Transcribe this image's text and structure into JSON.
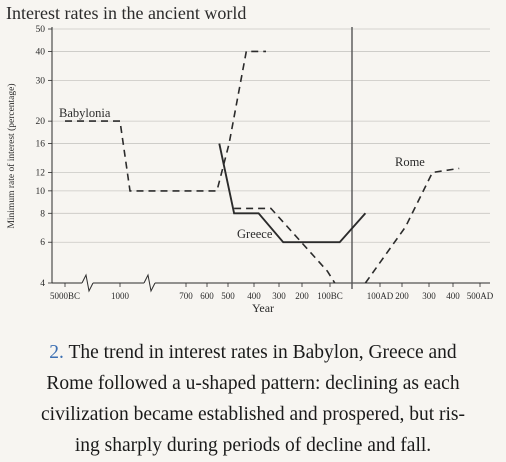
{
  "chart_data": {
    "type": "line",
    "title": "Interest rates in the ancient world",
    "xlabel": "Year",
    "ylabel": "Minimum rate of interest (percentage)",
    "y_scale": "log",
    "ylim": [
      4,
      50
    ],
    "y_ticks": [
      4,
      6,
      8,
      10,
      12,
      16,
      20,
      30,
      40,
      50
    ],
    "x_ticks": [
      "5000BC",
      "1000",
      "700",
      "600",
      "500",
      "400",
      "300",
      "200",
      "100BC",
      "100AD",
      "200",
      "300",
      "400",
      "500AD"
    ],
    "x_axis_breaks": [
      "between 5000BC and 1000",
      "between 1000 and 700"
    ],
    "divider_at": "0 (BC/AD boundary)",
    "series": [
      {
        "name": "Babylonia",
        "style": "dashed",
        "points": [
          {
            "x": "5000BC",
            "y": 20
          },
          {
            "x": "1000BC",
            "y": 20
          },
          {
            "x": "950BC",
            "y": 10
          },
          {
            "x": "550BC",
            "y": 10
          },
          {
            "x": "500BC",
            "y": 16
          },
          {
            "x": "430BC",
            "y": 40
          },
          {
            "x": "350BC",
            "y": 40
          }
        ]
      },
      {
        "name": "Greece",
        "style": "solid",
        "points": [
          {
            "x": "540BC",
            "y": 16
          },
          {
            "x": "480BC",
            "y": 8
          },
          {
            "x": "380BC",
            "y": 8
          },
          {
            "x": "280BC",
            "y": 6
          },
          {
            "x": "50BC",
            "y": 6
          },
          {
            "x": "50AD",
            "y": 8
          }
        ]
      },
      {
        "name": "Greece (dashed continuation)",
        "style": "dashed",
        "points": [
          {
            "x": "480BC",
            "y": 8.4
          },
          {
            "x": "330BC",
            "y": 8.4
          },
          {
            "x": "100BC",
            "y": 4.5
          },
          {
            "x": "70BC",
            "y": 4
          }
        ]
      },
      {
        "name": "Rome",
        "style": "dashed",
        "points": [
          {
            "x": "50AD",
            "y": 4
          },
          {
            "x": "200AD",
            "y": 7
          },
          {
            "x": "300AD",
            "y": 12
          },
          {
            "x": "400AD",
            "y": 12.5
          }
        ]
      }
    ],
    "annotations": [
      "Babylonia",
      "Greece",
      "Rome"
    ]
  },
  "caption": {
    "number": "2.",
    "lines": [
      "The trend in interest rates in Babylon, Greece and",
      "Rome followed a u-shaped pattern: declining as each",
      "civilization became established and prospered, but ris-",
      "ing sharply during periods of decline and fall."
    ]
  }
}
